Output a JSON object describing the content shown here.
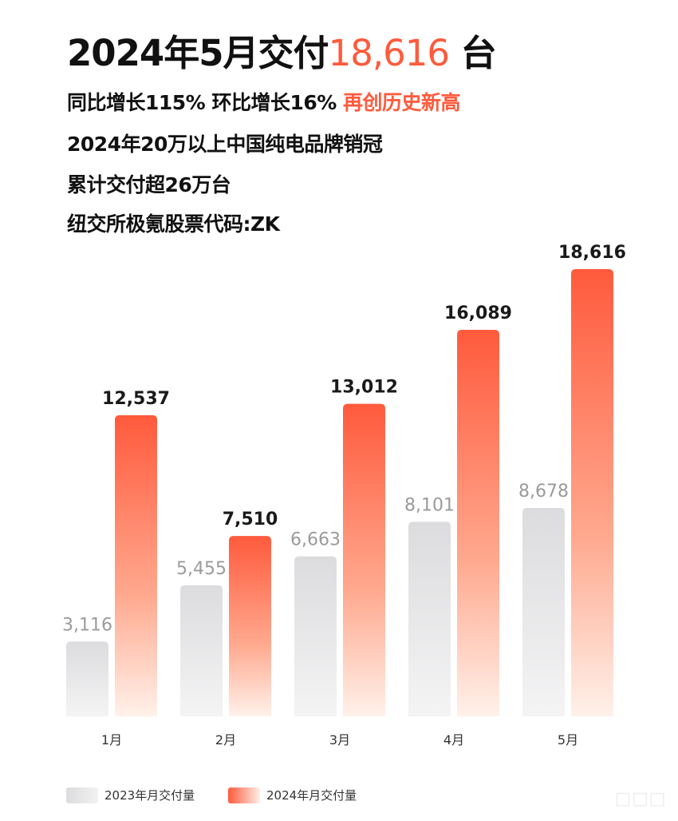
{
  "header": {
    "title_prefix": "2024年5月交付",
    "title_value": "18,616",
    "title_suffix": " 台",
    "line1_prefix": "同比增长115% 环比增长16% ",
    "line1_highlight": "再创历史新高",
    "line2": "2024年20万以上中国纯电品牌销冠",
    "line3": "累计交付超26万台",
    "line4": "纽交所极氪股票代码:ZK"
  },
  "colors": {
    "accent": "#ff5a3c",
    "gray_bar": "#dcdcde",
    "gray_label": "#9b9b9b"
  },
  "watermark": "车东西",
  "chart_data": {
    "type": "bar",
    "categories": [
      "1月",
      "2月",
      "3月",
      "4月",
      "5月"
    ],
    "series": [
      {
        "name": "2023年月交付量",
        "values": [
          3116,
          5455,
          6663,
          8101,
          8678
        ],
        "labels": [
          "3,116",
          "5,455",
          "6,663",
          "8,101",
          "8,678"
        ]
      },
      {
        "name": "2024年月交付量",
        "values": [
          12537,
          7510,
          13012,
          16089,
          18616
        ],
        "labels": [
          "12,537",
          "7,510",
          "13,012",
          "16,089",
          "18,616"
        ]
      }
    ],
    "legend": "bottom-left",
    "grid": false
  }
}
